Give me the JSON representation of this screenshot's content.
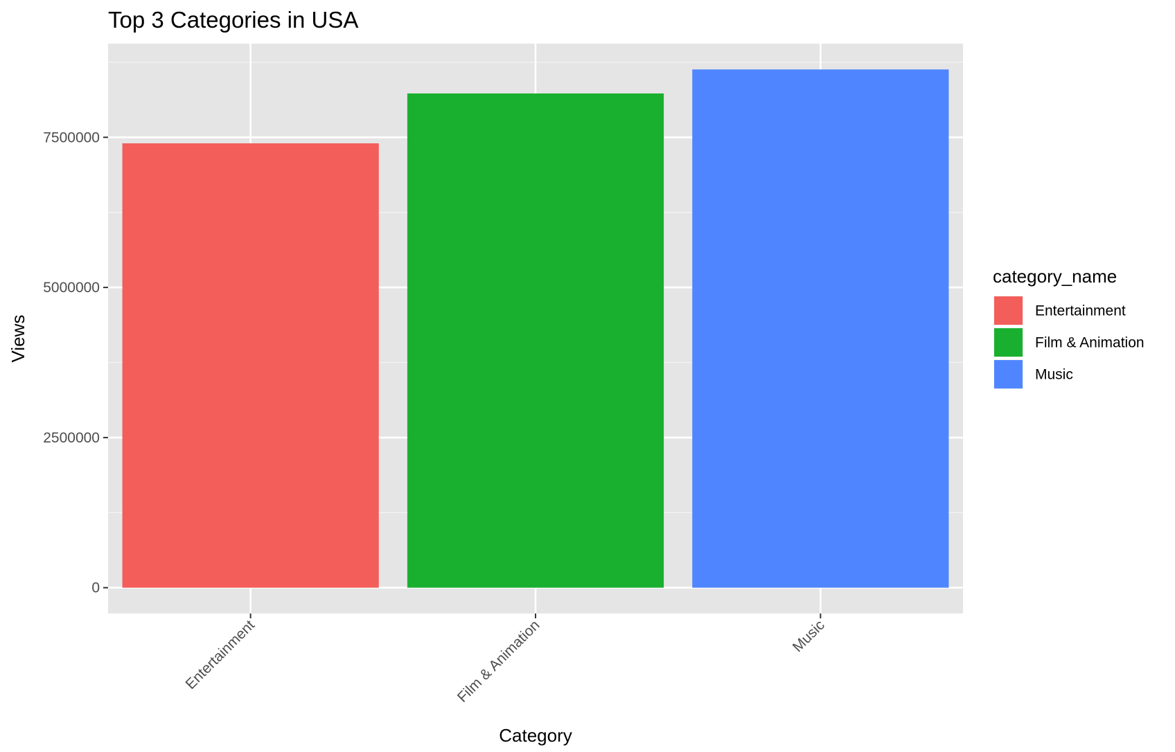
{
  "chart_data": {
    "type": "bar",
    "title": "Top 3 Categories in USA",
    "xlabel": "Category",
    "ylabel": "Views",
    "categories": [
      "Entertainment",
      "Film & Animation",
      "Music"
    ],
    "values": [
      7400000,
      8230000,
      8630000
    ],
    "colors": [
      "#F35E5A",
      "#19B02F",
      "#4F86FF"
    ],
    "ylim": [
      -430000,
      9060000
    ],
    "yticks": [
      0,
      2500000,
      5000000,
      7500000
    ],
    "ytick_labels": [
      "0",
      "2500000",
      "5000000",
      "7500000"
    ],
    "grid": true,
    "background": "#E5E5E5",
    "legend": {
      "title": "category_name",
      "position": "right",
      "entries": [
        "Entertainment",
        "Film & Animation",
        "Music"
      ]
    }
  }
}
